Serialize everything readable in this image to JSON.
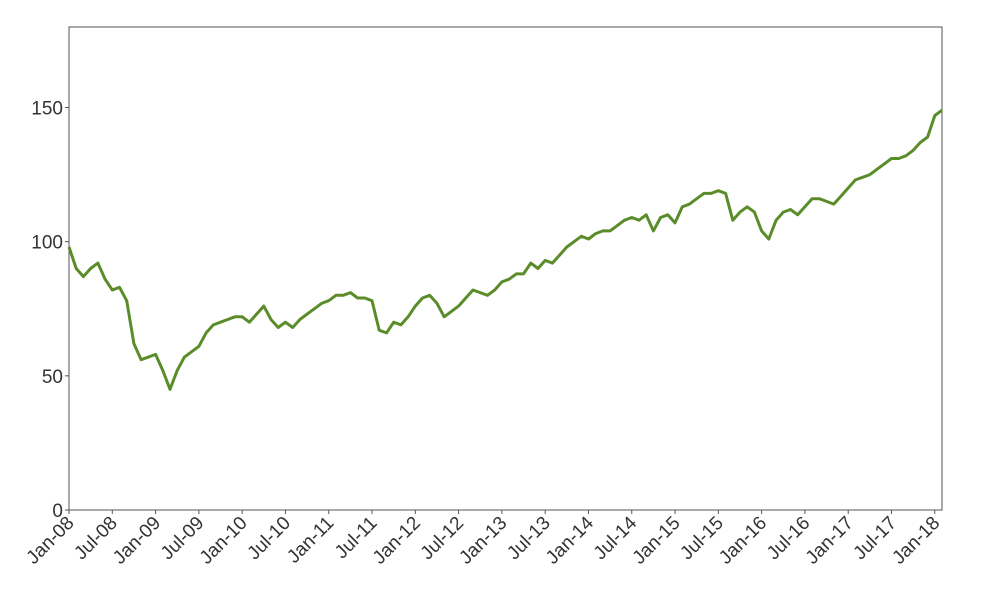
{
  "chart_data": {
    "type": "line",
    "color": "#5b8c2a",
    "grid": false,
    "x": [
      "2008-01",
      "2008-02",
      "2008-03",
      "2008-04",
      "2008-05",
      "2008-06",
      "2008-07",
      "2008-08",
      "2008-09",
      "2008-10",
      "2008-11",
      "2008-12",
      "2009-01",
      "2009-02",
      "2009-03",
      "2009-04",
      "2009-05",
      "2009-06",
      "2009-07",
      "2009-08",
      "2009-09",
      "2009-10",
      "2009-11",
      "2009-12",
      "2010-01",
      "2010-02",
      "2010-03",
      "2010-04",
      "2010-05",
      "2010-06",
      "2010-07",
      "2010-08",
      "2010-09",
      "2010-10",
      "2010-11",
      "2010-12",
      "2011-01",
      "2011-02",
      "2011-03",
      "2011-04",
      "2011-05",
      "2011-06",
      "2011-07",
      "2011-08",
      "2011-09",
      "2011-10",
      "2011-11",
      "2011-12",
      "2012-01",
      "2012-02",
      "2012-03",
      "2012-04",
      "2012-05",
      "2012-06",
      "2012-07",
      "2012-08",
      "2012-09",
      "2012-10",
      "2012-11",
      "2012-12",
      "2013-01",
      "2013-02",
      "2013-03",
      "2013-04",
      "2013-05",
      "2013-06",
      "2013-07",
      "2013-08",
      "2013-09",
      "2013-10",
      "2013-11",
      "2013-12",
      "2014-01",
      "2014-02",
      "2014-03",
      "2014-04",
      "2014-05",
      "2014-06",
      "2014-07",
      "2014-08",
      "2014-09",
      "2014-10",
      "2014-11",
      "2014-12",
      "2015-01",
      "2015-02",
      "2015-03",
      "2015-04",
      "2015-05",
      "2015-06",
      "2015-07",
      "2015-08",
      "2015-09",
      "2015-10",
      "2015-11",
      "2015-12",
      "2016-01",
      "2016-02",
      "2016-03",
      "2016-04",
      "2016-05",
      "2016-06",
      "2016-07",
      "2016-08",
      "2016-09",
      "2016-10",
      "2016-11",
      "2016-12",
      "2017-01",
      "2017-02",
      "2017-03",
      "2017-04",
      "2017-05",
      "2017-06",
      "2017-07",
      "2017-08",
      "2017-09",
      "2017-10",
      "2017-11",
      "2017-12",
      "2018-01",
      "2018-02"
    ],
    "values": [
      98,
      90,
      87,
      90,
      92,
      86,
      82,
      83,
      78,
      62,
      56,
      57,
      58,
      52,
      45,
      52,
      57,
      59,
      61,
      66,
      69,
      70,
      71,
      72,
      72,
      70,
      73,
      76,
      71,
      68,
      70,
      68,
      71,
      73,
      75,
      77,
      78,
      80,
      80,
      81,
      79,
      79,
      78,
      67,
      66,
      70,
      69,
      72,
      76,
      79,
      80,
      77,
      72,
      74,
      76,
      79,
      82,
      81,
      80,
      82,
      85,
      86,
      88,
      88,
      92,
      90,
      93,
      92,
      95,
      98,
      100,
      102,
      101,
      103,
      104,
      104,
      106,
      108,
      109,
      108,
      110,
      104,
      109,
      110,
      107,
      113,
      114,
      116,
      118,
      118,
      119,
      118,
      108,
      111,
      113,
      111,
      104,
      101,
      108,
      111,
      112,
      110,
      113,
      116,
      116,
      115,
      114,
      117,
      120,
      123,
      124,
      125,
      127,
      129,
      131,
      131,
      132,
      134,
      137,
      139,
      147,
      149
    ],
    "xlim": [
      "2008-01",
      "2018-02"
    ],
    "xticks": [
      {
        "value": "2008-01",
        "label": "Jan-08"
      },
      {
        "value": "2008-07",
        "label": "Jul-08"
      },
      {
        "value": "2009-01",
        "label": "Jan-09"
      },
      {
        "value": "2009-07",
        "label": "Jul-09"
      },
      {
        "value": "2010-01",
        "label": "Jan-10"
      },
      {
        "value": "2010-07",
        "label": "Jul-10"
      },
      {
        "value": "2011-01",
        "label": "Jan-11"
      },
      {
        "value": "2011-07",
        "label": "Jul-11"
      },
      {
        "value": "2012-01",
        "label": "Jan-12"
      },
      {
        "value": "2012-07",
        "label": "Jul-12"
      },
      {
        "value": "2013-01",
        "label": "Jan-13"
      },
      {
        "value": "2013-07",
        "label": "Jul-13"
      },
      {
        "value": "2014-01",
        "label": "Jan-14"
      },
      {
        "value": "2014-07",
        "label": "Jul-14"
      },
      {
        "value": "2015-01",
        "label": "Jan-15"
      },
      {
        "value": "2015-07",
        "label": "Jul-15"
      },
      {
        "value": "2016-01",
        "label": "Jan-16"
      },
      {
        "value": "2016-07",
        "label": "Jul-16"
      },
      {
        "value": "2017-01",
        "label": "Jan-17"
      },
      {
        "value": "2017-07",
        "label": "Jul-17"
      },
      {
        "value": "2018-01",
        "label": "Jan-18"
      }
    ],
    "ylim": [
      0,
      180
    ],
    "yticks": [
      0,
      50,
      100,
      150
    ]
  }
}
